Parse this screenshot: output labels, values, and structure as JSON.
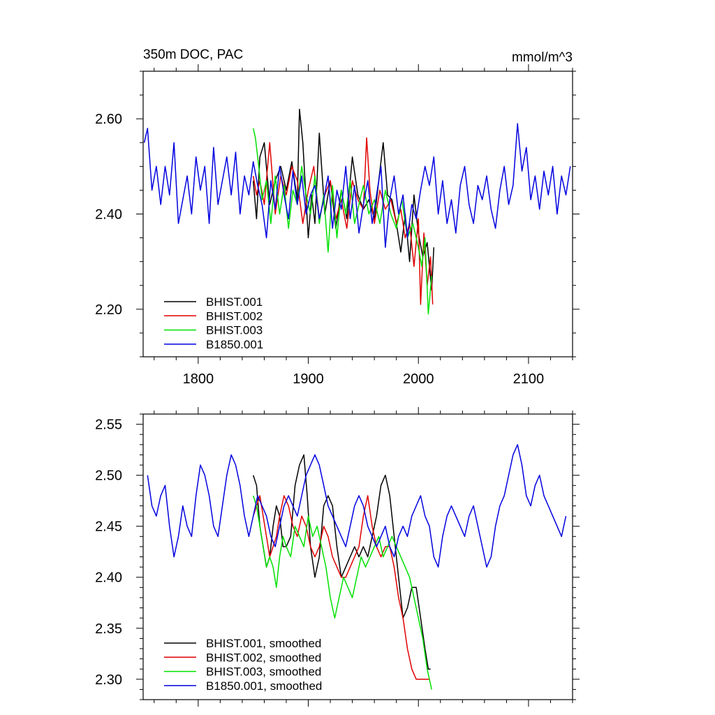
{
  "chart_data": [
    {
      "type": "line",
      "title": "350m DOC, PAC",
      "units": "mmol/m^3",
      "xlim": [
        1750,
        2140
      ],
      "ylim": [
        2.1,
        2.7
      ],
      "xticks": [
        1800,
        1900,
        2000,
        2100
      ],
      "xtick_labels": [
        "1800",
        "1900",
        "2000",
        "2100"
      ],
      "yticks": [
        2.2,
        2.4,
        2.6
      ],
      "ytick_labels": [
        "2.20",
        "2.40",
        "2.60"
      ],
      "legend_location": "lower-left",
      "series": [
        {
          "name": "BHIST.001",
          "color": "#000000",
          "x": [
            1850,
            1853,
            1856,
            1860,
            1865,
            1870,
            1875,
            1880,
            1885,
            1890,
            1892,
            1895,
            1900,
            1903,
            1906,
            1910,
            1915,
            1920,
            1925,
            1930,
            1935,
            1940,
            1945,
            1950,
            1955,
            1960,
            1965,
            1968,
            1972,
            1976,
            1980,
            1984,
            1988,
            1992,
            1996,
            2000,
            2004,
            2008,
            2012,
            2014
          ],
          "y": [
            2.47,
            2.39,
            2.52,
            2.55,
            2.42,
            2.47,
            2.5,
            2.45,
            2.51,
            2.43,
            2.62,
            2.55,
            2.35,
            2.44,
            2.38,
            2.57,
            2.4,
            2.47,
            2.37,
            2.45,
            2.39,
            2.52,
            2.44,
            2.41,
            2.43,
            2.39,
            2.49,
            2.55,
            2.44,
            2.43,
            2.38,
            2.32,
            2.4,
            2.3,
            2.44,
            2.36,
            2.31,
            2.34,
            2.24,
            2.33
          ]
        },
        {
          "name": "BHIST.002",
          "color": "#e00000",
          "x": [
            1850,
            1853,
            1856,
            1860,
            1865,
            1870,
            1875,
            1880,
            1885,
            1890,
            1895,
            1900,
            1905,
            1910,
            1915,
            1920,
            1925,
            1930,
            1935,
            1940,
            1945,
            1950,
            1953,
            1956,
            1960,
            1965,
            1970,
            1975,
            1980,
            1984,
            1988,
            1992,
            1996,
            2000,
            2002,
            2005,
            2008,
            2011,
            2013
          ],
          "y": [
            2.48,
            2.44,
            2.47,
            2.42,
            2.55,
            2.4,
            2.48,
            2.44,
            2.5,
            2.47,
            2.38,
            2.45,
            2.5,
            2.39,
            2.44,
            2.47,
            2.39,
            2.43,
            2.37,
            2.47,
            2.43,
            2.41,
            2.56,
            2.45,
            2.38,
            2.45,
            2.41,
            2.43,
            2.38,
            2.41,
            2.35,
            2.38,
            2.29,
            2.39,
            2.21,
            2.36,
            2.25,
            2.31,
            2.21
          ]
        },
        {
          "name": "BHIST.003",
          "color": "#00e000",
          "x": [
            1850,
            1852,
            1855,
            1858,
            1862,
            1866,
            1870,
            1874,
            1878,
            1882,
            1886,
            1890,
            1894,
            1898,
            1902,
            1906,
            1910,
            1914,
            1918,
            1922,
            1926,
            1930,
            1934,
            1938,
            1942,
            1946,
            1950,
            1955,
            1960,
            1965,
            1970,
            1975,
            1980,
            1985,
            1990,
            1995,
            2000,
            2003,
            2006,
            2009,
            2012
          ],
          "y": [
            2.58,
            2.56,
            2.5,
            2.43,
            2.47,
            2.38,
            2.48,
            2.4,
            2.46,
            2.37,
            2.45,
            2.42,
            2.5,
            2.44,
            2.4,
            2.48,
            2.38,
            2.44,
            2.32,
            2.46,
            2.35,
            2.45,
            2.4,
            2.47,
            2.38,
            2.42,
            2.46,
            2.4,
            2.43,
            2.38,
            2.45,
            2.4,
            2.37,
            2.43,
            2.35,
            2.38,
            2.33,
            2.29,
            2.35,
            2.19,
            2.27
          ]
        },
        {
          "name": "B1850.001",
          "color": "#0000e0",
          "x": [
            1751,
            1754,
            1758,
            1762,
            1766,
            1770,
            1774,
            1778,
            1782,
            1786,
            1790,
            1794,
            1798,
            1802,
            1806,
            1810,
            1814,
            1818,
            1822,
            1826,
            1830,
            1834,
            1838,
            1842,
            1846,
            1850,
            1854,
            1858,
            1862,
            1866,
            1870,
            1874,
            1878,
            1882,
            1886,
            1890,
            1894,
            1898,
            1902,
            1906,
            1910,
            1914,
            1918,
            1922,
            1926,
            1930,
            1934,
            1938,
            1942,
            1946,
            1950,
            1954,
            1958,
            1962,
            1966,
            1970,
            1974,
            1978,
            1982,
            1986,
            1990,
            1994,
            1998,
            2002,
            2006,
            2010,
            2014,
            2018,
            2022,
            2026,
            2030,
            2034,
            2038,
            2042,
            2046,
            2050,
            2054,
            2058,
            2062,
            2066,
            2070,
            2074,
            2078,
            2082,
            2086,
            2090,
            2094,
            2098,
            2102,
            2106,
            2110,
            2114,
            2118,
            2122,
            2126,
            2130,
            2134,
            2138
          ],
          "y": [
            2.55,
            2.58,
            2.45,
            2.5,
            2.42,
            2.5,
            2.44,
            2.55,
            2.38,
            2.43,
            2.48,
            2.4,
            2.52,
            2.45,
            2.5,
            2.38,
            2.54,
            2.42,
            2.47,
            2.52,
            2.44,
            2.53,
            2.4,
            2.48,
            2.44,
            2.51,
            2.46,
            2.42,
            2.35,
            2.47,
            2.41,
            2.5,
            2.44,
            2.39,
            2.49,
            2.42,
            2.48,
            2.4,
            2.44,
            2.46,
            2.39,
            2.43,
            2.48,
            2.37,
            2.45,
            2.41,
            2.5,
            2.39,
            2.46,
            2.36,
            2.42,
            2.47,
            2.38,
            2.44,
            2.5,
            2.33,
            2.43,
            2.48,
            2.4,
            2.44,
            2.35,
            2.42,
            2.39,
            2.45,
            2.5,
            2.46,
            2.52,
            2.4,
            2.47,
            2.38,
            2.43,
            2.36,
            2.46,
            2.5,
            2.42,
            2.38,
            2.46,
            2.43,
            2.48,
            2.41,
            2.37,
            2.45,
            2.5,
            2.42,
            2.46,
            2.59,
            2.49,
            2.54,
            2.43,
            2.48,
            2.41,
            2.49,
            2.44,
            2.5,
            2.4,
            2.48,
            2.44,
            2.5
          ]
        }
      ]
    },
    {
      "type": "line",
      "title": "",
      "units": "",
      "xlim": [
        1750,
        2140
      ],
      "ylim": [
        2.28,
        2.56
      ],
      "xticks": [
        1800,
        1900,
        2000,
        2100
      ],
      "xtick_labels": [],
      "yticks": [
        2.3,
        2.35,
        2.4,
        2.45,
        2.5,
        2.55
      ],
      "ytick_labels": [
        "2.30",
        "2.35",
        "2.40",
        "2.45",
        "2.50",
        "2.55"
      ],
      "legend_location": "lower-left",
      "series": [
        {
          "name": "BHIST.001, smoothed",
          "color": "#000000",
          "x": [
            1850,
            1853,
            1856,
            1859,
            1862,
            1865,
            1868,
            1871,
            1874,
            1877,
            1880,
            1884,
            1888,
            1892,
            1896,
            1899,
            1902,
            1906,
            1910,
            1914,
            1918,
            1922,
            1926,
            1930,
            1934,
            1938,
            1942,
            1946,
            1950,
            1954,
            1958,
            1962,
            1966,
            1970,
            1974,
            1978,
            1982,
            1986,
            1990,
            1994,
            1998,
            2002,
            2006,
            2009,
            2011
          ],
          "y": [
            2.5,
            2.49,
            2.45,
            2.43,
            2.41,
            2.42,
            2.45,
            2.47,
            2.46,
            2.43,
            2.43,
            2.44,
            2.49,
            2.51,
            2.52,
            2.48,
            2.43,
            2.4,
            2.42,
            2.47,
            2.48,
            2.47,
            2.43,
            2.4,
            2.41,
            2.42,
            2.43,
            2.42,
            2.43,
            2.42,
            2.44,
            2.46,
            2.49,
            2.5,
            2.48,
            2.44,
            2.4,
            2.36,
            2.37,
            2.39,
            2.39,
            2.36,
            2.33,
            2.31,
            2.31
          ]
        },
        {
          "name": "BHIST.002, smoothed",
          "color": "#e00000",
          "x": [
            1850,
            1853,
            1856,
            1859,
            1862,
            1865,
            1868,
            1871,
            1874,
            1878,
            1882,
            1886,
            1890,
            1894,
            1898,
            1902,
            1906,
            1910,
            1914,
            1918,
            1922,
            1926,
            1930,
            1934,
            1938,
            1942,
            1946,
            1950,
            1954,
            1958,
            1962,
            1966,
            1970,
            1974,
            1978,
            1982,
            1986,
            1990,
            1994,
            1998,
            2002,
            2006,
            2010
          ],
          "y": [
            2.46,
            2.47,
            2.48,
            2.46,
            2.44,
            2.42,
            2.43,
            2.44,
            2.46,
            2.48,
            2.47,
            2.45,
            2.44,
            2.46,
            2.45,
            2.43,
            2.42,
            2.43,
            2.45,
            2.44,
            2.42,
            2.41,
            2.4,
            2.4,
            2.41,
            2.42,
            2.43,
            2.46,
            2.48,
            2.45,
            2.43,
            2.42,
            2.43,
            2.43,
            2.41,
            2.38,
            2.36,
            2.33,
            2.31,
            2.3,
            2.3,
            2.3,
            2.3
          ]
        },
        {
          "name": "BHIST.003, smoothed",
          "color": "#00e000",
          "x": [
            1850,
            1853,
            1856,
            1859,
            1862,
            1865,
            1868,
            1871,
            1874,
            1877,
            1880,
            1884,
            1888,
            1892,
            1896,
            1900,
            1904,
            1908,
            1912,
            1916,
            1920,
            1924,
            1928,
            1932,
            1936,
            1940,
            1944,
            1948,
            1952,
            1956,
            1960,
            1964,
            1968,
            1972,
            1976,
            1980,
            1984,
            1988,
            1992,
            1996,
            2000,
            2004,
            2008,
            2012
          ],
          "y": [
            2.48,
            2.47,
            2.45,
            2.43,
            2.41,
            2.42,
            2.41,
            2.39,
            2.42,
            2.44,
            2.43,
            2.42,
            2.45,
            2.44,
            2.43,
            2.46,
            2.44,
            2.45,
            2.43,
            2.41,
            2.38,
            2.36,
            2.38,
            2.4,
            2.39,
            2.38,
            2.4,
            2.42,
            2.41,
            2.42,
            2.43,
            2.44,
            2.42,
            2.43,
            2.44,
            2.43,
            2.42,
            2.41,
            2.4,
            2.38,
            2.36,
            2.34,
            2.31,
            2.29
          ]
        },
        {
          "name": "B1850.001, smoothed",
          "color": "#0000e0",
          "x": [
            1754,
            1758,
            1762,
            1766,
            1770,
            1774,
            1778,
            1782,
            1786,
            1790,
            1794,
            1798,
            1802,
            1806,
            1810,
            1814,
            1818,
            1822,
            1826,
            1830,
            1834,
            1838,
            1842,
            1846,
            1850,
            1854,
            1858,
            1862,
            1866,
            1870,
            1874,
            1878,
            1882,
            1886,
            1890,
            1894,
            1898,
            1902,
            1906,
            1910,
            1914,
            1918,
            1922,
            1926,
            1930,
            1934,
            1938,
            1942,
            1946,
            1950,
            1954,
            1958,
            1962,
            1966,
            1970,
            1974,
            1978,
            1982,
            1986,
            1990,
            1994,
            1998,
            2002,
            2006,
            2010,
            2014,
            2018,
            2022,
            2026,
            2030,
            2034,
            2038,
            2042,
            2046,
            2050,
            2054,
            2058,
            2062,
            2066,
            2070,
            2074,
            2078,
            2082,
            2086,
            2090,
            2094,
            2098,
            2102,
            2106,
            2110,
            2114,
            2118,
            2122,
            2126,
            2130,
            2134
          ],
          "y": [
            2.5,
            2.47,
            2.46,
            2.48,
            2.49,
            2.45,
            2.42,
            2.44,
            2.47,
            2.45,
            2.44,
            2.48,
            2.51,
            2.5,
            2.48,
            2.45,
            2.44,
            2.47,
            2.5,
            2.52,
            2.51,
            2.49,
            2.46,
            2.44,
            2.46,
            2.48,
            2.47,
            2.46,
            2.44,
            2.43,
            2.45,
            2.47,
            2.48,
            2.47,
            2.46,
            2.48,
            2.5,
            2.51,
            2.52,
            2.51,
            2.49,
            2.47,
            2.46,
            2.45,
            2.44,
            2.43,
            2.45,
            2.47,
            2.48,
            2.47,
            2.45,
            2.44,
            2.43,
            2.44,
            2.45,
            2.43,
            2.42,
            2.44,
            2.45,
            2.44,
            2.46,
            2.47,
            2.48,
            2.46,
            2.45,
            2.42,
            2.41,
            2.44,
            2.46,
            2.47,
            2.46,
            2.45,
            2.44,
            2.46,
            2.47,
            2.45,
            2.43,
            2.41,
            2.42,
            2.45,
            2.47,
            2.48,
            2.5,
            2.52,
            2.53,
            2.51,
            2.48,
            2.47,
            2.49,
            2.5,
            2.48,
            2.47,
            2.46,
            2.45,
            2.44,
            2.46
          ]
        }
      ]
    }
  ]
}
